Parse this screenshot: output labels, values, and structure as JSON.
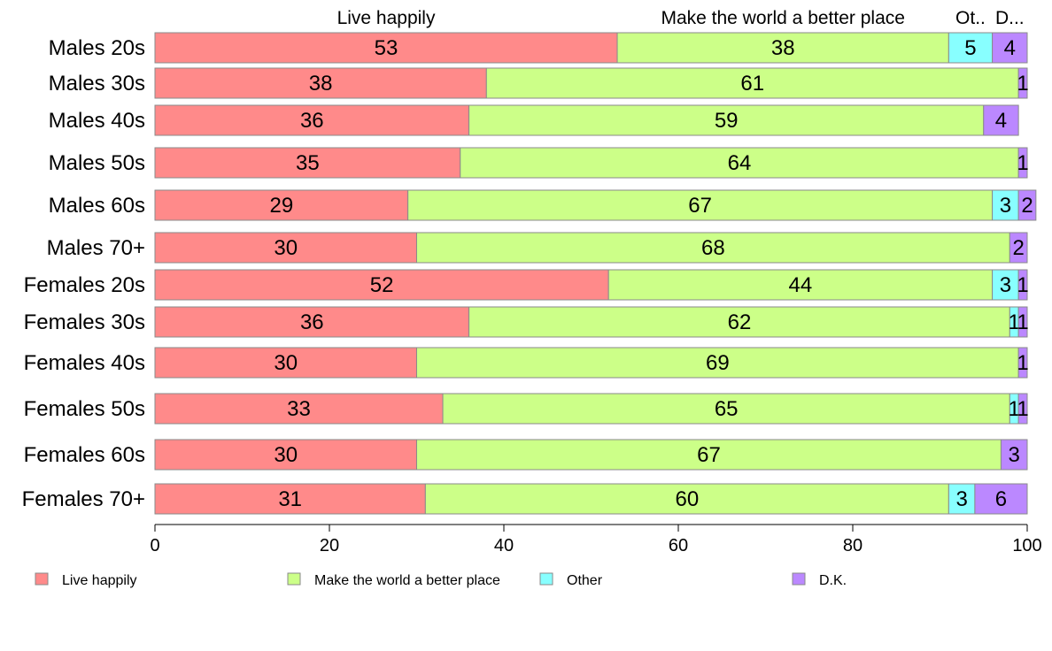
{
  "chart_data": {
    "type": "bar",
    "orientation": "horizontal",
    "stacked": true,
    "categories": [
      "Males 20s",
      "Males 30s",
      "Males 40s",
      "Males 50s",
      "Males 60s",
      "Males 70+",
      "Females 20s",
      "Females 30s",
      "Females 40s",
      "Females 50s",
      "Females 60s",
      "Females 70+"
    ],
    "series": [
      {
        "name": "Live happily",
        "color": "#ff8a8a",
        "values": [
          53,
          38,
          36,
          35,
          29,
          30,
          52,
          36,
          30,
          33,
          30,
          31
        ]
      },
      {
        "name": "Make the world a better place",
        "color": "#ccff88",
        "values": [
          38,
          61,
          59,
          64,
          67,
          68,
          44,
          62,
          69,
          65,
          67,
          60
        ]
      },
      {
        "name": "Other",
        "color": "#88ffff",
        "values": [
          5,
          0,
          0,
          0,
          3,
          0,
          3,
          1,
          0,
          1,
          0,
          3
        ]
      },
      {
        "name": "D.K.",
        "color": "#bb88ff",
        "values": [
          4,
          1,
          4,
          1,
          2,
          2,
          1,
          1,
          1,
          1,
          3,
          6
        ]
      }
    ],
    "top_labels": [
      "Live happily",
      "Make the world a better place",
      "Ot..",
      "D..."
    ],
    "xlim": [
      0,
      100
    ],
    "xticks": [
      "0",
      "20",
      "40",
      "60",
      "80",
      "100"
    ],
    "xlabel": "",
    "ylabel": "",
    "legend": {
      "position": "bottom",
      "items": [
        "Live happily",
        "Make the world a better place",
        "Other",
        "D.K."
      ]
    },
    "grid": false
  }
}
